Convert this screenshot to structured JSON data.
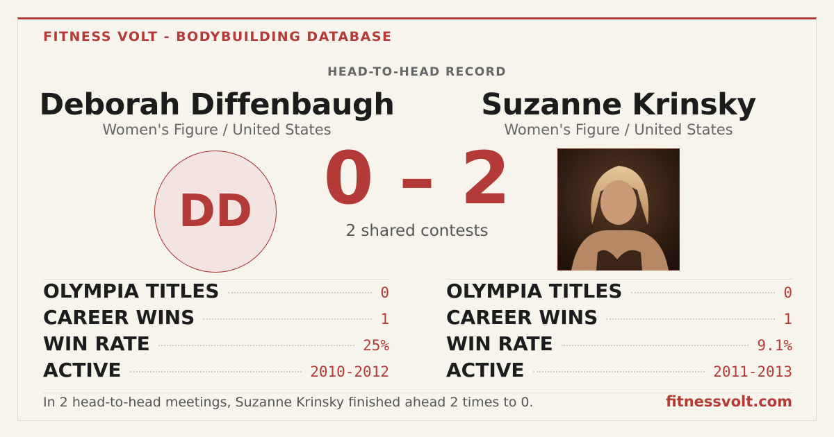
{
  "header": {
    "brand": "FITNESS VOLT - BODYBUILDING DATABASE",
    "section": "HEAD-TO-HEAD RECORD"
  },
  "athletes": [
    {
      "name": "Deborah Diffenbaugh",
      "subtitle": "Women's Figure / United States",
      "initials": "DD",
      "stats": [
        {
          "label": "OLYMPIA TITLES",
          "value": "0"
        },
        {
          "label": "CAREER WINS",
          "value": "1"
        },
        {
          "label": "WIN RATE",
          "value": "25%"
        },
        {
          "label": "ACTIVE",
          "value": "2010-2012"
        }
      ]
    },
    {
      "name": "Suzanne Krinsky",
      "subtitle": "Women's Figure / United States",
      "stats": [
        {
          "label": "OLYMPIA TITLES",
          "value": "0"
        },
        {
          "label": "CAREER WINS",
          "value": "1"
        },
        {
          "label": "WIN RATE",
          "value": "9.1%"
        },
        {
          "label": "ACTIVE",
          "value": "2011-2013"
        }
      ]
    }
  ],
  "score": "0 – 2",
  "shared": "2 shared contests",
  "footer": {
    "summary": "In 2 head-to-head meetings, Suzanne Krinsky finished ahead 2 times to 0.",
    "site": "fitnessvolt.com"
  }
}
